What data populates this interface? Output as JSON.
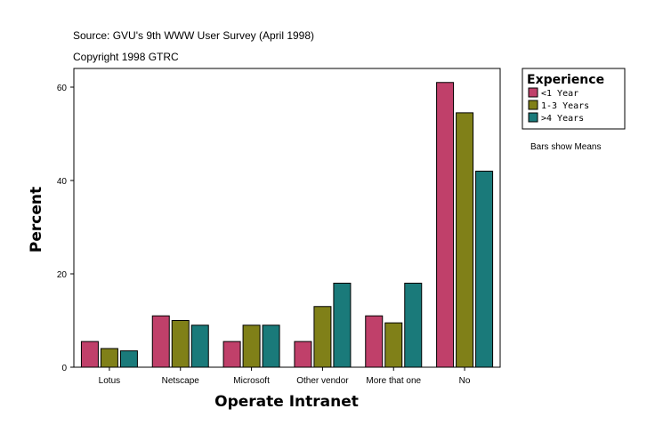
{
  "source_line": "Source: GVU's 9th WWW User Survey (April 1998)",
  "copyright_line": "Copyright 1998 GTRC",
  "bars_note": "Bars show Means",
  "chart_data": {
    "type": "bar",
    "xlabel": "Operate Intranet",
    "ylabel": "Percent",
    "ylim": [
      0,
      64
    ],
    "yticks": [
      0,
      20,
      40,
      60
    ],
    "categories": [
      "Lotus",
      "Netscape",
      "Microsoft",
      "Other vendor",
      "More that one",
      "No"
    ],
    "legend_title": "Experience",
    "legend_position": "top-right",
    "series": [
      {
        "name": "<1 Year",
        "color": "#c0406a",
        "values": [
          5.5,
          11.0,
          5.5,
          5.5,
          11.0,
          61.0
        ]
      },
      {
        "name": "1-3 Years",
        "color": "#808018",
        "values": [
          4.0,
          10.0,
          9.0,
          13.0,
          9.5,
          54.5
        ]
      },
      {
        "name": ">4 Years",
        "color": "#1a7a7a",
        "values": [
          3.5,
          9.0,
          9.0,
          18.0,
          18.0,
          42.0
        ]
      }
    ]
  }
}
